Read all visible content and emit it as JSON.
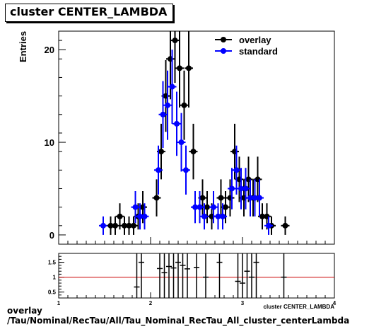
{
  "header": {
    "title": "cluster CENTER_LAMBDA"
  },
  "footer": {
    "line1": "overlay",
    "line2": "/Tau/Nominal/RecTau/All/Tau_Nominal_RecTau_All_cluster_centerLambda"
  },
  "chart_data": [
    {
      "type": "scatter",
      "title": "cluster CENTER_LAMBDA",
      "xlabel": "cluster CENTER_LAMBDA",
      "ylabel": "Entries",
      "xlim": [
        1,
        4
      ],
      "ylim": [
        -1,
        22
      ],
      "yticks": [
        0,
        10,
        20
      ],
      "legend": {
        "position": "top-right",
        "entries": [
          "overlay",
          "standard"
        ]
      },
      "colors": {
        "overlay": "#000000",
        "standard": "#0000ff"
      },
      "series": [
        {
          "name": "overlay",
          "x": [
            1.55,
            1.6,
            1.65,
            1.7,
            1.75,
            1.8,
            1.85,
            1.9,
            2.05,
            2.1,
            2.15,
            2.2,
            2.25,
            2.3,
            2.35,
            2.4,
            2.45,
            2.55,
            2.6,
            2.65,
            2.75,
            2.8,
            2.85,
            2.9,
            2.95,
            3.0,
            3.05,
            3.1,
            3.15,
            3.2,
            3.25,
            3.3,
            3.45
          ],
          "y": [
            1,
            1,
            2,
            1,
            1,
            1,
            2,
            3,
            4,
            9,
            15,
            19,
            21,
            18,
            14,
            18,
            9,
            4,
            3,
            2,
            4,
            3,
            4,
            9,
            6,
            4,
            6,
            4,
            6,
            2,
            2,
            1,
            1
          ]
        },
        {
          "name": "standard",
          "x": [
            1.5,
            1.85,
            1.9,
            1.95,
            2.1,
            2.15,
            2.2,
            2.25,
            2.3,
            2.35,
            2.4,
            2.5,
            2.55,
            2.6,
            2.7,
            2.75,
            2.8,
            2.9,
            2.95,
            3.0,
            3.05,
            3.1,
            3.15,
            3.2,
            3.3
          ],
          "y": [
            1,
            3,
            2,
            2,
            7,
            13,
            14,
            16,
            12,
            10,
            7,
            3,
            3,
            2,
            3,
            2,
            2,
            5,
            7,
            5,
            5,
            4,
            4,
            4,
            1
          ]
        }
      ]
    },
    {
      "type": "scatter",
      "title": "",
      "xlabel": "cluster CENTER_LAMBDA",
      "ylabel": "",
      "xlim": [
        1,
        4
      ],
      "ylim": [
        0.3,
        1.8
      ],
      "xticks": [
        1,
        2,
        3,
        4
      ],
      "yticks": [
        0.5,
        1,
        1.5
      ],
      "reference_line": 1,
      "colors": {
        "ratio": "#000000",
        "reference": "#cc0000"
      },
      "series": [
        {
          "name": "ratio",
          "x": [
            1.85,
            1.9,
            2.1,
            2.15,
            2.2,
            2.25,
            2.3,
            2.35,
            2.4,
            2.5,
            2.6,
            2.75,
            2.95,
            3.0,
            3.05,
            3.1,
            3.15,
            3.45
          ],
          "y": [
            0.67,
            1.5,
            1.29,
            1.15,
            1.36,
            1.31,
            1.5,
            1.4,
            1.28,
            1.33,
            1.0,
            1.5,
            0.86,
            0.8,
            1.2,
            1.0,
            1.5,
            1.0
          ]
        }
      ]
    }
  ]
}
